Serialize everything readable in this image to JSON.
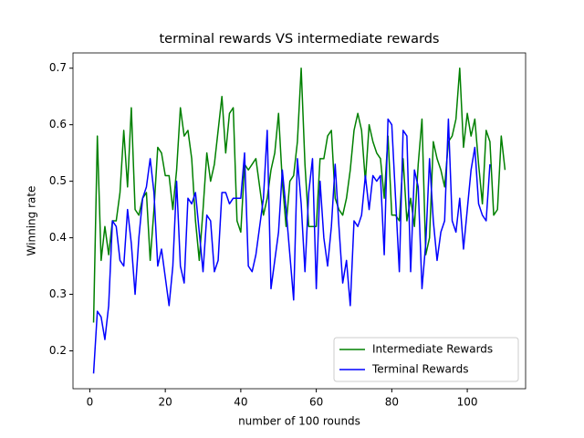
{
  "chart_data": {
    "type": "line",
    "title": "terminal rewards VS intermediate rewards",
    "xlabel": "number of 100 rounds",
    "ylabel": "Winning rate",
    "x": [
      1,
      2,
      3,
      4,
      5,
      6,
      7,
      8,
      9,
      10,
      11,
      12,
      13,
      14,
      15,
      16,
      17,
      18,
      19,
      20,
      21,
      22,
      23,
      24,
      25,
      26,
      27,
      28,
      29,
      30,
      31,
      32,
      33,
      34,
      35,
      36,
      37,
      38,
      39,
      40,
      41,
      42,
      43,
      44,
      45,
      46,
      47,
      48,
      49,
      50,
      51,
      52,
      53,
      54,
      55,
      56,
      57,
      58,
      59,
      60,
      61,
      62,
      63,
      64,
      65,
      66,
      67,
      68,
      69,
      70,
      71,
      72,
      73,
      74,
      75,
      76,
      77,
      78,
      79,
      80,
      81,
      82,
      83,
      84,
      85,
      86,
      87,
      88,
      89,
      90,
      91,
      92,
      93,
      94,
      95,
      96,
      97,
      98,
      99,
      100,
      101,
      102,
      103,
      104,
      105,
      106,
      107,
      108,
      109,
      110
    ],
    "series": [
      {
        "name": "Intermediate Rewards",
        "color": "#008000",
        "values": [
          0.25,
          0.58,
          0.36,
          0.42,
          0.37,
          0.43,
          0.43,
          0.48,
          0.59,
          0.49,
          0.63,
          0.45,
          0.44,
          0.47,
          0.48,
          0.36,
          0.45,
          0.56,
          0.55,
          0.51,
          0.51,
          0.45,
          0.52,
          0.63,
          0.58,
          0.59,
          0.54,
          0.43,
          0.36,
          0.45,
          0.55,
          0.5,
          0.53,
          0.59,
          0.65,
          0.55,
          0.62,
          0.63,
          0.43,
          0.41,
          0.53,
          0.52,
          0.53,
          0.54,
          0.49,
          0.44,
          0.47,
          0.52,
          0.55,
          0.62,
          0.5,
          0.42,
          0.5,
          0.51,
          0.57,
          0.7,
          0.53,
          0.42,
          0.42,
          0.42,
          0.54,
          0.54,
          0.58,
          0.59,
          0.47,
          0.45,
          0.44,
          0.47,
          0.52,
          0.59,
          0.62,
          0.59,
          0.5,
          0.6,
          0.57,
          0.55,
          0.54,
          0.47,
          0.58,
          0.44,
          0.44,
          0.43,
          0.54,
          0.43,
          0.47,
          0.42,
          0.53,
          0.61,
          0.37,
          0.4,
          0.57,
          0.54,
          0.52,
          0.49,
          0.57,
          0.58,
          0.61,
          0.7,
          0.56,
          0.62,
          0.58,
          0.61,
          0.53,
          0.46,
          0.59,
          0.57,
          0.44,
          0.45,
          0.58,
          0.52
        ]
      },
      {
        "name": "Terminal Rewards",
        "color": "#0000ff",
        "values": [
          0.16,
          0.27,
          0.26,
          0.22,
          0.28,
          0.43,
          0.42,
          0.36,
          0.35,
          0.45,
          0.39,
          0.3,
          0.4,
          0.47,
          0.49,
          0.54,
          0.48,
          0.35,
          0.38,
          0.33,
          0.28,
          0.35,
          0.5,
          0.35,
          0.32,
          0.47,
          0.46,
          0.48,
          0.41,
          0.34,
          0.44,
          0.43,
          0.34,
          0.36,
          0.48,
          0.48,
          0.46,
          0.47,
          0.47,
          0.47,
          0.55,
          0.35,
          0.34,
          0.37,
          0.42,
          0.47,
          0.59,
          0.31,
          0.36,
          0.41,
          0.52,
          0.45,
          0.37,
          0.29,
          0.54,
          0.46,
          0.34,
          0.48,
          0.54,
          0.31,
          0.5,
          0.4,
          0.35,
          0.42,
          0.53,
          0.42,
          0.32,
          0.36,
          0.28,
          0.43,
          0.42,
          0.44,
          0.51,
          0.45,
          0.51,
          0.5,
          0.51,
          0.37,
          0.61,
          0.6,
          0.47,
          0.34,
          0.59,
          0.58,
          0.34,
          0.52,
          0.49,
          0.31,
          0.39,
          0.54,
          0.43,
          0.36,
          0.41,
          0.43,
          0.61,
          0.43,
          0.41,
          0.47,
          0.38,
          0.45,
          0.52,
          0.56,
          0.46,
          0.44,
          0.43,
          0.53,
          null,
          null,
          null,
          null
        ]
      }
    ],
    "xlim": [
      -4.45,
      115.45
    ],
    "xticks": [
      0,
      20,
      40,
      60,
      80,
      100
    ],
    "ylim": [
      0.133,
      0.727
    ],
    "yticks": [
      0.2,
      0.3,
      0.4,
      0.5,
      0.6,
      0.7
    ],
    "legend": "lower right"
  }
}
